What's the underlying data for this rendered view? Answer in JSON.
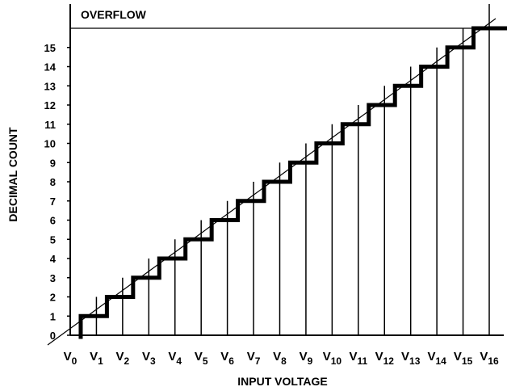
{
  "chart_data": {
    "type": "line",
    "xlabel": "INPUT VOLTAGE",
    "ylabel": "DECIMAL COUNT",
    "annotation": "OVERFLOW",
    "x_ticks": [
      {
        "base": "V",
        "sub": "0"
      },
      {
        "base": "V",
        "sub": "1"
      },
      {
        "base": "V",
        "sub": "2"
      },
      {
        "base": "V",
        "sub": "3"
      },
      {
        "base": "V",
        "sub": "4"
      },
      {
        "base": "V",
        "sub": "5"
      },
      {
        "base": "V",
        "sub": "6"
      },
      {
        "base": "V",
        "sub": "7"
      },
      {
        "base": "V",
        "sub": "8"
      },
      {
        "base": "V",
        "sub": "9"
      },
      {
        "base": "V",
        "sub": "10"
      },
      {
        "base": "V",
        "sub": "11"
      },
      {
        "base": "V",
        "sub": "12"
      },
      {
        "base": "V",
        "sub": "13"
      },
      {
        "base": "V",
        "sub": "14"
      },
      {
        "base": "V",
        "sub": "15"
      },
      {
        "base": "V",
        "sub": "16"
      }
    ],
    "y_ticks": [
      "0",
      "1",
      "2",
      "3",
      "4",
      "5",
      "6",
      "7",
      "8",
      "9",
      "10",
      "11",
      "12",
      "13",
      "14",
      "15"
    ],
    "xlim": [
      0,
      16
    ],
    "ylim": [
      0,
      16
    ],
    "overflow_level": 16,
    "series": [
      {
        "style": "staircase",
        "transitions": [
          0.4,
          1.4,
          2.4,
          3.4,
          4.4,
          5.4,
          6.4,
          7.4,
          8.4,
          9.4,
          10.4,
          11.4,
          12.4,
          13.4,
          14.4,
          15.4
        ],
        "values": [
          0,
          1,
          2,
          3,
          4,
          5,
          6,
          7,
          8,
          9,
          10,
          11,
          12,
          13,
          14,
          15,
          16
        ]
      },
      {
        "style": "ideal-line",
        "x": [
          0,
          16
        ],
        "y": [
          0,
          16
        ]
      }
    ]
  }
}
